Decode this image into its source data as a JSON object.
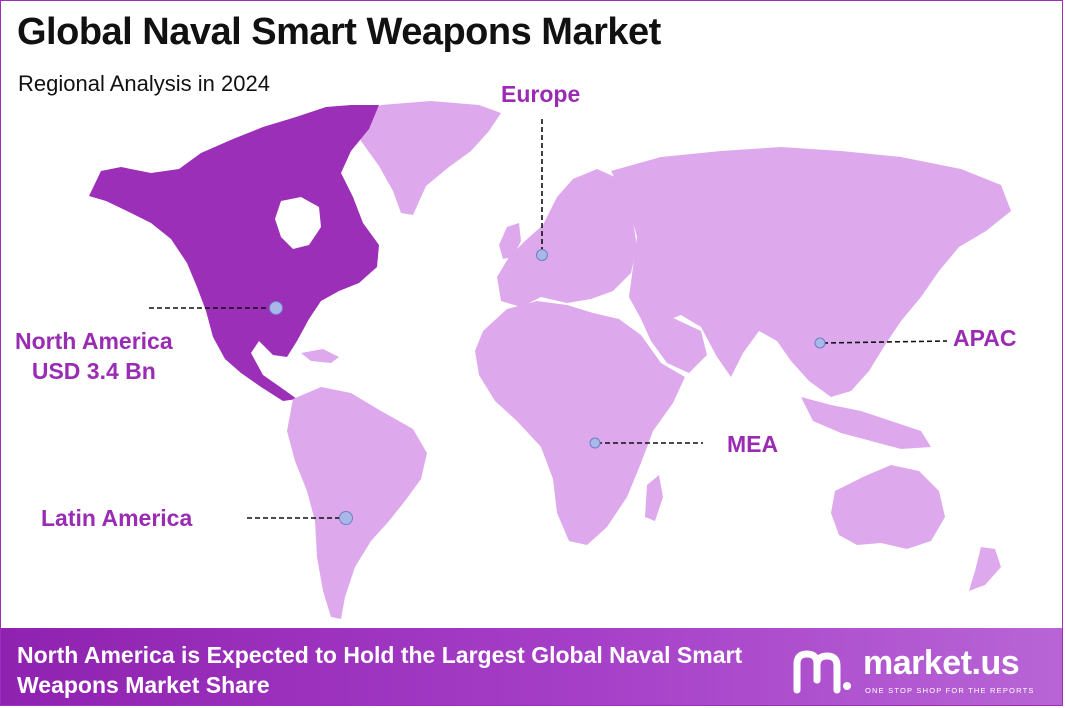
{
  "header": {
    "title": "Global Naval Smart Weapons Market",
    "subtitle": "Regional Analysis in 2024"
  },
  "regions": {
    "north_america": {
      "name": "North America",
      "value": "USD 3.4 Bn",
      "highlighted": true
    },
    "europe": {
      "name": "Europe"
    },
    "apac": {
      "name": "APAC"
    },
    "mea": {
      "name": "MEA"
    },
    "latin_america": {
      "name": "Latin America"
    }
  },
  "colors": {
    "highlight_region": "#9b2fb8",
    "other_regions": "#dda9ec",
    "marker": "#a9b8e8",
    "label": "#9a2bb3",
    "footer_bg": "#9b2fb8"
  },
  "footer": {
    "text": "North America is Expected to Hold the Largest Global Naval Smart Weapons Market Share"
  },
  "logo": {
    "name": "market.us",
    "tagline": "ONE STOP SHOP FOR THE REPORTS"
  }
}
